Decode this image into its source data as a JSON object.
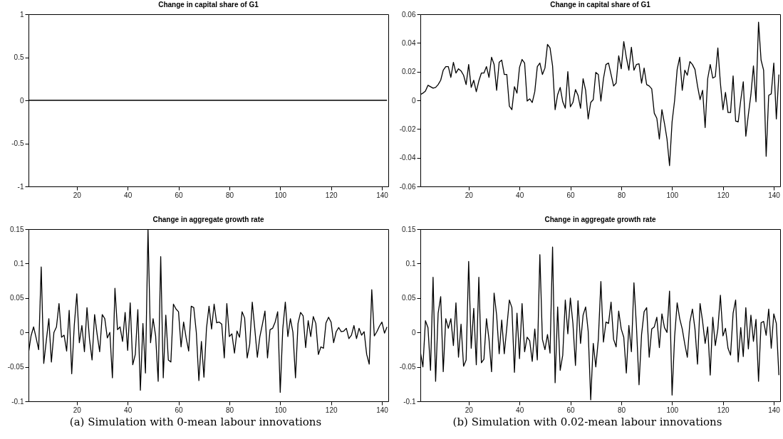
{
  "chart_data": [
    {
      "type": "line",
      "title": "Change in capital share of G1",
      "xlim": [
        1,
        142.5
      ],
      "xticks": [
        20,
        40,
        60,
        80,
        100,
        120,
        140
      ],
      "ylim": [
        -1,
        1
      ],
      "yticks": [
        -1,
        -0.5,
        0,
        0.5,
        1
      ],
      "marker": "none",
      "line_style": "solid",
      "x": [
        1,
        2,
        3,
        4,
        5,
        6,
        7,
        8,
        9,
        10,
        11,
        12,
        13,
        14,
        15,
        16,
        17,
        18,
        19,
        20,
        21,
        22,
        23,
        24,
        25,
        26,
        27,
        28,
        29,
        30,
        31,
        32,
        33,
        34,
        35,
        36,
        37,
        38,
        39,
        40,
        41,
        42,
        43,
        44,
        45,
        46,
        47,
        48,
        49,
        50,
        51,
        52,
        53,
        54,
        55,
        56,
        57,
        58,
        59,
        60,
        61,
        62,
        63,
        64,
        65,
        66,
        67,
        68,
        69,
        70,
        71,
        72,
        73,
        74,
        75,
        76,
        77,
        78,
        79,
        80,
        81,
        82,
        83,
        84,
        85,
        86,
        87,
        88,
        89,
        90,
        91,
        92,
        93,
        94,
        95,
        96,
        97,
        98,
        99,
        100,
        101,
        102,
        103,
        104,
        105,
        106,
        107,
        108,
        109,
        110,
        111,
        112,
        113,
        114,
        115,
        116,
        117,
        118,
        119,
        120,
        121,
        122,
        123,
        124,
        125,
        126,
        127,
        128,
        129,
        130,
        131,
        132,
        133,
        134,
        135,
        136,
        137,
        138,
        139,
        140,
        141,
        142
      ],
      "series": [
        {
          "color": "#000000",
          "values": [
            0,
            0,
            0,
            0,
            0,
            0,
            0,
            0,
            0,
            0,
            0,
            0,
            0,
            0,
            0,
            0,
            0,
            0,
            0,
            0,
            0,
            0,
            0,
            0,
            0,
            0,
            0,
            0,
            0,
            0,
            0,
            0,
            0,
            0,
            0,
            0,
            0,
            0,
            0,
            0,
            0,
            0,
            0,
            0,
            0,
            0,
            0,
            0,
            0,
            0,
            0,
            0,
            0,
            0,
            0,
            0,
            0,
            0,
            0,
            0,
            0,
            0,
            0,
            0,
            0,
            0,
            0,
            0,
            0,
            0,
            0,
            0,
            0,
            0,
            0,
            0,
            0,
            0,
            0,
            0,
            0,
            0,
            0,
            0,
            0,
            0,
            0,
            0,
            0,
            0,
            0,
            0,
            0,
            0,
            0,
            0,
            0,
            0,
            0,
            0,
            0,
            0,
            0,
            0,
            0,
            0,
            0,
            0,
            0,
            0,
            0,
            0,
            0,
            0,
            0,
            0,
            0,
            0,
            0,
            0,
            0,
            0,
            0,
            0,
            0,
            0,
            0,
            0,
            0,
            0,
            0,
            0,
            0,
            0,
            0,
            0,
            0,
            0,
            0,
            0,
            0,
            0
          ]
        }
      ]
    },
    {
      "type": "line",
      "title": "Change in capital share of G1",
      "xlim": [
        1,
        142.5
      ],
      "xticks": [
        20,
        40,
        60,
        80,
        100,
        120,
        140
      ],
      "ylim": [
        -0.06,
        0.06
      ],
      "yticks": [
        -0.06,
        -0.04,
        -0.02,
        0,
        0.02,
        0.04,
        0.06
      ],
      "marker": "none",
      "line_style": "solid",
      "x": [
        1,
        2,
        3,
        4,
        5,
        6,
        7,
        8,
        9,
        10,
        11,
        12,
        13,
        14,
        15,
        16,
        17,
        18,
        19,
        20,
        21,
        22,
        23,
        24,
        25,
        26,
        27,
        28,
        29,
        30,
        31,
        32,
        33,
        34,
        35,
        36,
        37,
        38,
        39,
        40,
        41,
        42,
        43,
        44,
        45,
        46,
        47,
        48,
        49,
        50,
        51,
        52,
        53,
        54,
        55,
        56,
        57,
        58,
        59,
        60,
        61,
        62,
        63,
        64,
        65,
        66,
        67,
        68,
        69,
        70,
        71,
        72,
        73,
        74,
        75,
        76,
        77,
        78,
        79,
        80,
        81,
        82,
        83,
        84,
        85,
        86,
        87,
        88,
        89,
        90,
        91,
        92,
        93,
        94,
        95,
        96,
        97,
        98,
        99,
        100,
        101,
        102,
        103,
        104,
        105,
        106,
        107,
        108,
        109,
        110,
        111,
        112,
        113,
        114,
        115,
        116,
        117,
        118,
        119,
        120,
        121,
        122,
        123,
        124,
        125,
        126,
        127,
        128,
        129,
        130,
        131,
        132,
        133,
        134,
        135,
        136,
        137,
        138,
        139,
        140,
        141,
        142
      ],
      "series": [
        {
          "color": "#000000",
          "values": [
            0.004,
            0.005,
            0.0065,
            0.0105,
            0.0095,
            0.0085,
            0.009,
            0.011,
            0.014,
            0.021,
            0.0235,
            0.0235,
            0.016,
            0.0265,
            0.019,
            0.022,
            0.0205,
            0.0175,
            0.011,
            0.025,
            0.009,
            0.014,
            0.006,
            0.0135,
            0.019,
            0.019,
            0.0235,
            0.016,
            0.03,
            0.025,
            0.007,
            0.0265,
            0.028,
            0.018,
            0.018,
            -0.004,
            -0.0065,
            0.0095,
            0.005,
            0.023,
            0.0285,
            0.026,
            -0.0005,
            0.001,
            -0.0015,
            0.006,
            0.0235,
            0.026,
            0.018,
            0.0225,
            0.039,
            0.0365,
            0.024,
            -0.0065,
            0.004,
            0.009,
            -0.001,
            -0.0055,
            0.02,
            -0.0045,
            -0.0015,
            0.0075,
            0.0035,
            -0.0055,
            0.015,
            0.007,
            -0.013,
            -0.0015,
            0.0005,
            0.0195,
            0.018,
            -0.0005,
            0.015,
            0.025,
            0.026,
            0.018,
            0.01,
            0.012,
            0.031,
            0.022,
            0.041,
            0.03,
            0.021,
            0.037,
            0.021,
            0.025,
            0.0255,
            0.012,
            0.0225,
            0.011,
            0.01,
            0.008,
            -0.009,
            -0.0125,
            -0.027,
            -0.0065,
            -0.016,
            -0.027,
            -0.0455,
            -0.015,
            0,
            0.0215,
            0.03,
            0.007,
            0.021,
            0.0175,
            0.027,
            0.025,
            0.0215,
            0.01,
            0.0005,
            0.007,
            -0.019,
            0.015,
            0.025,
            0.0155,
            0.0165,
            0.0365,
            0.012,
            -0.0065,
            0.0055,
            -0.0085,
            -0.0085,
            0.017,
            -0.0145,
            -0.015,
            0,
            0.013,
            -0.025,
            -0.01,
            0.004,
            0.024,
            -0.001,
            0.0545,
            0.028,
            0.021,
            -0.039,
            0.0035,
            0.0045,
            0.026,
            -0.013,
            0.018
          ]
        }
      ]
    },
    {
      "type": "line",
      "title": "Change in aggregate growth rate",
      "xlim": [
        1,
        142.5
      ],
      "xticks": [
        20,
        40,
        60,
        80,
        100,
        120,
        140
      ],
      "ylim": [
        -0.1,
        0.15
      ],
      "yticks": [
        -0.1,
        -0.05,
        0,
        0.05,
        0.1,
        0.15
      ],
      "marker": "none",
      "line_style": "solid",
      "annotations": [
        "(a) Simulation with 0-mean labour innovations"
      ],
      "x": [
        1,
        2,
        3,
        4,
        5,
        6,
        7,
        8,
        9,
        10,
        11,
        12,
        13,
        14,
        15,
        16,
        17,
        18,
        19,
        20,
        21,
        22,
        23,
        24,
        25,
        26,
        27,
        28,
        29,
        30,
        31,
        32,
        33,
        34,
        35,
        36,
        37,
        38,
        39,
        40,
        41,
        42,
        43,
        44,
        45,
        46,
        47,
        48,
        49,
        50,
        51,
        52,
        53,
        54,
        55,
        56,
        57,
        58,
        59,
        60,
        61,
        62,
        63,
        64,
        65,
        66,
        67,
        68,
        69,
        70,
        71,
        72,
        73,
        74,
        75,
        76,
        77,
        78,
        79,
        80,
        81,
        82,
        83,
        84,
        85,
        86,
        87,
        88,
        89,
        90,
        91,
        92,
        93,
        94,
        95,
        96,
        97,
        98,
        99,
        100,
        101,
        102,
        103,
        104,
        105,
        106,
        107,
        108,
        109,
        110,
        111,
        112,
        113,
        114,
        115,
        116,
        117,
        118,
        119,
        120,
        121,
        122,
        123,
        124,
        125,
        126,
        127,
        128,
        129,
        130,
        131,
        132,
        133,
        134,
        135,
        136,
        137,
        138,
        139,
        140,
        141,
        142
      ],
      "series": [
        {
          "color": "#000000",
          "values": [
            -0.03,
            -0.005,
            0.008,
            -0.008,
            -0.025,
            0.095,
            -0.045,
            -0.012,
            0.02,
            -0.043,
            0,
            0.008,
            0.042,
            -0.007,
            -0.004,
            -0.027,
            0.032,
            -0.06,
            0.01,
            0.056,
            -0.015,
            0.01,
            -0.028,
            0.036,
            -0.01,
            -0.04,
            0.026,
            -0.003,
            -0.028,
            0.026,
            0.02,
            -0.008,
            0,
            -0.066,
            0.064,
            0.004,
            0.008,
            -0.013,
            0.029,
            -0.026,
            0.043,
            -0.047,
            -0.032,
            0.033,
            -0.084,
            0.013,
            -0.059,
            0.15,
            -0.015,
            0.02,
            -0.005,
            -0.071,
            0.11,
            -0.066,
            0.025,
            -0.04,
            -0.043,
            0.041,
            0.034,
            0.03,
            -0.021,
            0.015,
            -0.008,
            -0.027,
            0.038,
            0.036,
            0,
            -0.07,
            -0.013,
            -0.065,
            0.006,
            0.038,
            0.005,
            0.041,
            0.014,
            0.015,
            0.012,
            -0.037,
            0.042,
            -0.006,
            -0.002,
            -0.03,
            0.002,
            -0.007,
            0.03,
            0.021,
            -0.037,
            -0.017,
            0.044,
            0.005,
            -0.036,
            -0.006,
            0.012,
            0.031,
            -0.037,
            0.004,
            0.006,
            0.015,
            0.03,
            -0.087,
            0.005,
            0.044,
            -0.006,
            0.02,
            0,
            -0.066,
            0.013,
            0.029,
            0.024,
            -0.022,
            0.017,
            -0.006,
            0.023,
            0.013,
            -0.032,
            -0.021,
            -0.023,
            0.014,
            0.022,
            0.015,
            -0.015,
            0.001,
            0.007,
            0.001,
            0.002,
            0.006,
            -0.009,
            -0.004,
            0.01,
            -0.009,
            0.006,
            -0.004,
            0.001,
            -0.032,
            -0.046,
            0.062,
            -0.005,
            0.001,
            0.009,
            0.015,
            -0.001,
            0.008
          ]
        }
      ]
    },
    {
      "type": "line",
      "title": "Change in aggregate growth rate",
      "xlim": [
        1,
        142.5
      ],
      "xticks": [
        20,
        40,
        60,
        80,
        100,
        120,
        140
      ],
      "ylim": [
        -0.1,
        0.15
      ],
      "yticks": [
        -0.1,
        -0.05,
        0,
        0.05,
        0.1,
        0.15
      ],
      "marker": "none",
      "line_style": "solid",
      "annotations": [
        "(b) Simulation with 0.02-mean labour innovations"
      ],
      "x": [
        1,
        2,
        3,
        4,
        5,
        6,
        7,
        8,
        9,
        10,
        11,
        12,
        13,
        14,
        15,
        16,
        17,
        18,
        19,
        20,
        21,
        22,
        23,
        24,
        25,
        26,
        27,
        28,
        29,
        30,
        31,
        32,
        33,
        34,
        35,
        36,
        37,
        38,
        39,
        40,
        41,
        42,
        43,
        44,
        45,
        46,
        47,
        48,
        49,
        50,
        51,
        52,
        53,
        54,
        55,
        56,
        57,
        58,
        59,
        60,
        61,
        62,
        63,
        64,
        65,
        66,
        67,
        68,
        69,
        70,
        71,
        72,
        73,
        74,
        75,
        76,
        77,
        78,
        79,
        80,
        81,
        82,
        83,
        84,
        85,
        86,
        87,
        88,
        89,
        90,
        91,
        92,
        93,
        94,
        95,
        96,
        97,
        98,
        99,
        100,
        101,
        102,
        103,
        104,
        105,
        106,
        107,
        108,
        109,
        110,
        111,
        112,
        113,
        114,
        115,
        116,
        117,
        118,
        119,
        120,
        121,
        122,
        123,
        124,
        125,
        126,
        127,
        128,
        129,
        130,
        131,
        132,
        133,
        134,
        135,
        136,
        137,
        138,
        139,
        140,
        141,
        142
      ],
      "series": [
        {
          "color": "#000000",
          "values": [
            -0.028,
            -0.05,
            0.017,
            0.007,
            -0.055,
            0.08,
            -0.071,
            0.028,
            0.052,
            -0.057,
            0.02,
            0.006,
            0.02,
            -0.019,
            0.043,
            -0.036,
            0.012,
            -0.049,
            -0.04,
            0.103,
            -0.023,
            0.035,
            -0.047,
            0.08,
            -0.044,
            -0.039,
            0.02,
            -0.01,
            -0.057,
            0.057,
            0.025,
            -0.031,
            0.018,
            -0.031,
            0.007,
            0.047,
            0.036,
            -0.058,
            0.028,
            -0.038,
            0.042,
            -0.028,
            -0.007,
            -0.012,
            -0.042,
            0.005,
            -0.04,
            0.113,
            -0.01,
            -0.025,
            -0.003,
            -0.03,
            0.124,
            -0.073,
            0.037,
            -0.055,
            -0.033,
            0.047,
            -0.002,
            0.05,
            0.013,
            -0.048,
            0.046,
            -0.016,
            0.025,
            0.037,
            0.002,
            -0.098,
            -0.016,
            -0.05,
            -0.01,
            0.074,
            -0.014,
            0.015,
            0.013,
            0.044,
            -0.01,
            -0.021,
            0.031,
            0.005,
            -0.007,
            -0.059,
            0.01,
            -0.028,
            0.072,
            0.008,
            -0.076,
            -0.003,
            0.03,
            0.036,
            -0.036,
            0.005,
            0.008,
            0.022,
            -0.022,
            0.027,
            0.007,
            0,
            0.06,
            -0.091,
            -0.006,
            0.043,
            0.02,
            0.005,
            -0.017,
            -0.036,
            0.015,
            0.034,
            0.005,
            -0.046,
            0.042,
            0.016,
            -0.016,
            0.008,
            -0.062,
            0.022,
            -0.019,
            0.005,
            0.054,
            -0.005,
            0.006,
            -0.023,
            -0.033,
            0.028,
            0.047,
            -0.043,
            0.007,
            -0.035,
            0.036,
            -0.024,
            0.025,
            -0.013,
            0.019,
            -0.071,
            0.014,
            0.016,
            -0.004,
            0.034,
            -0.023,
            0.027,
            0.013,
            -0.062
          ]
        }
      ]
    }
  ]
}
